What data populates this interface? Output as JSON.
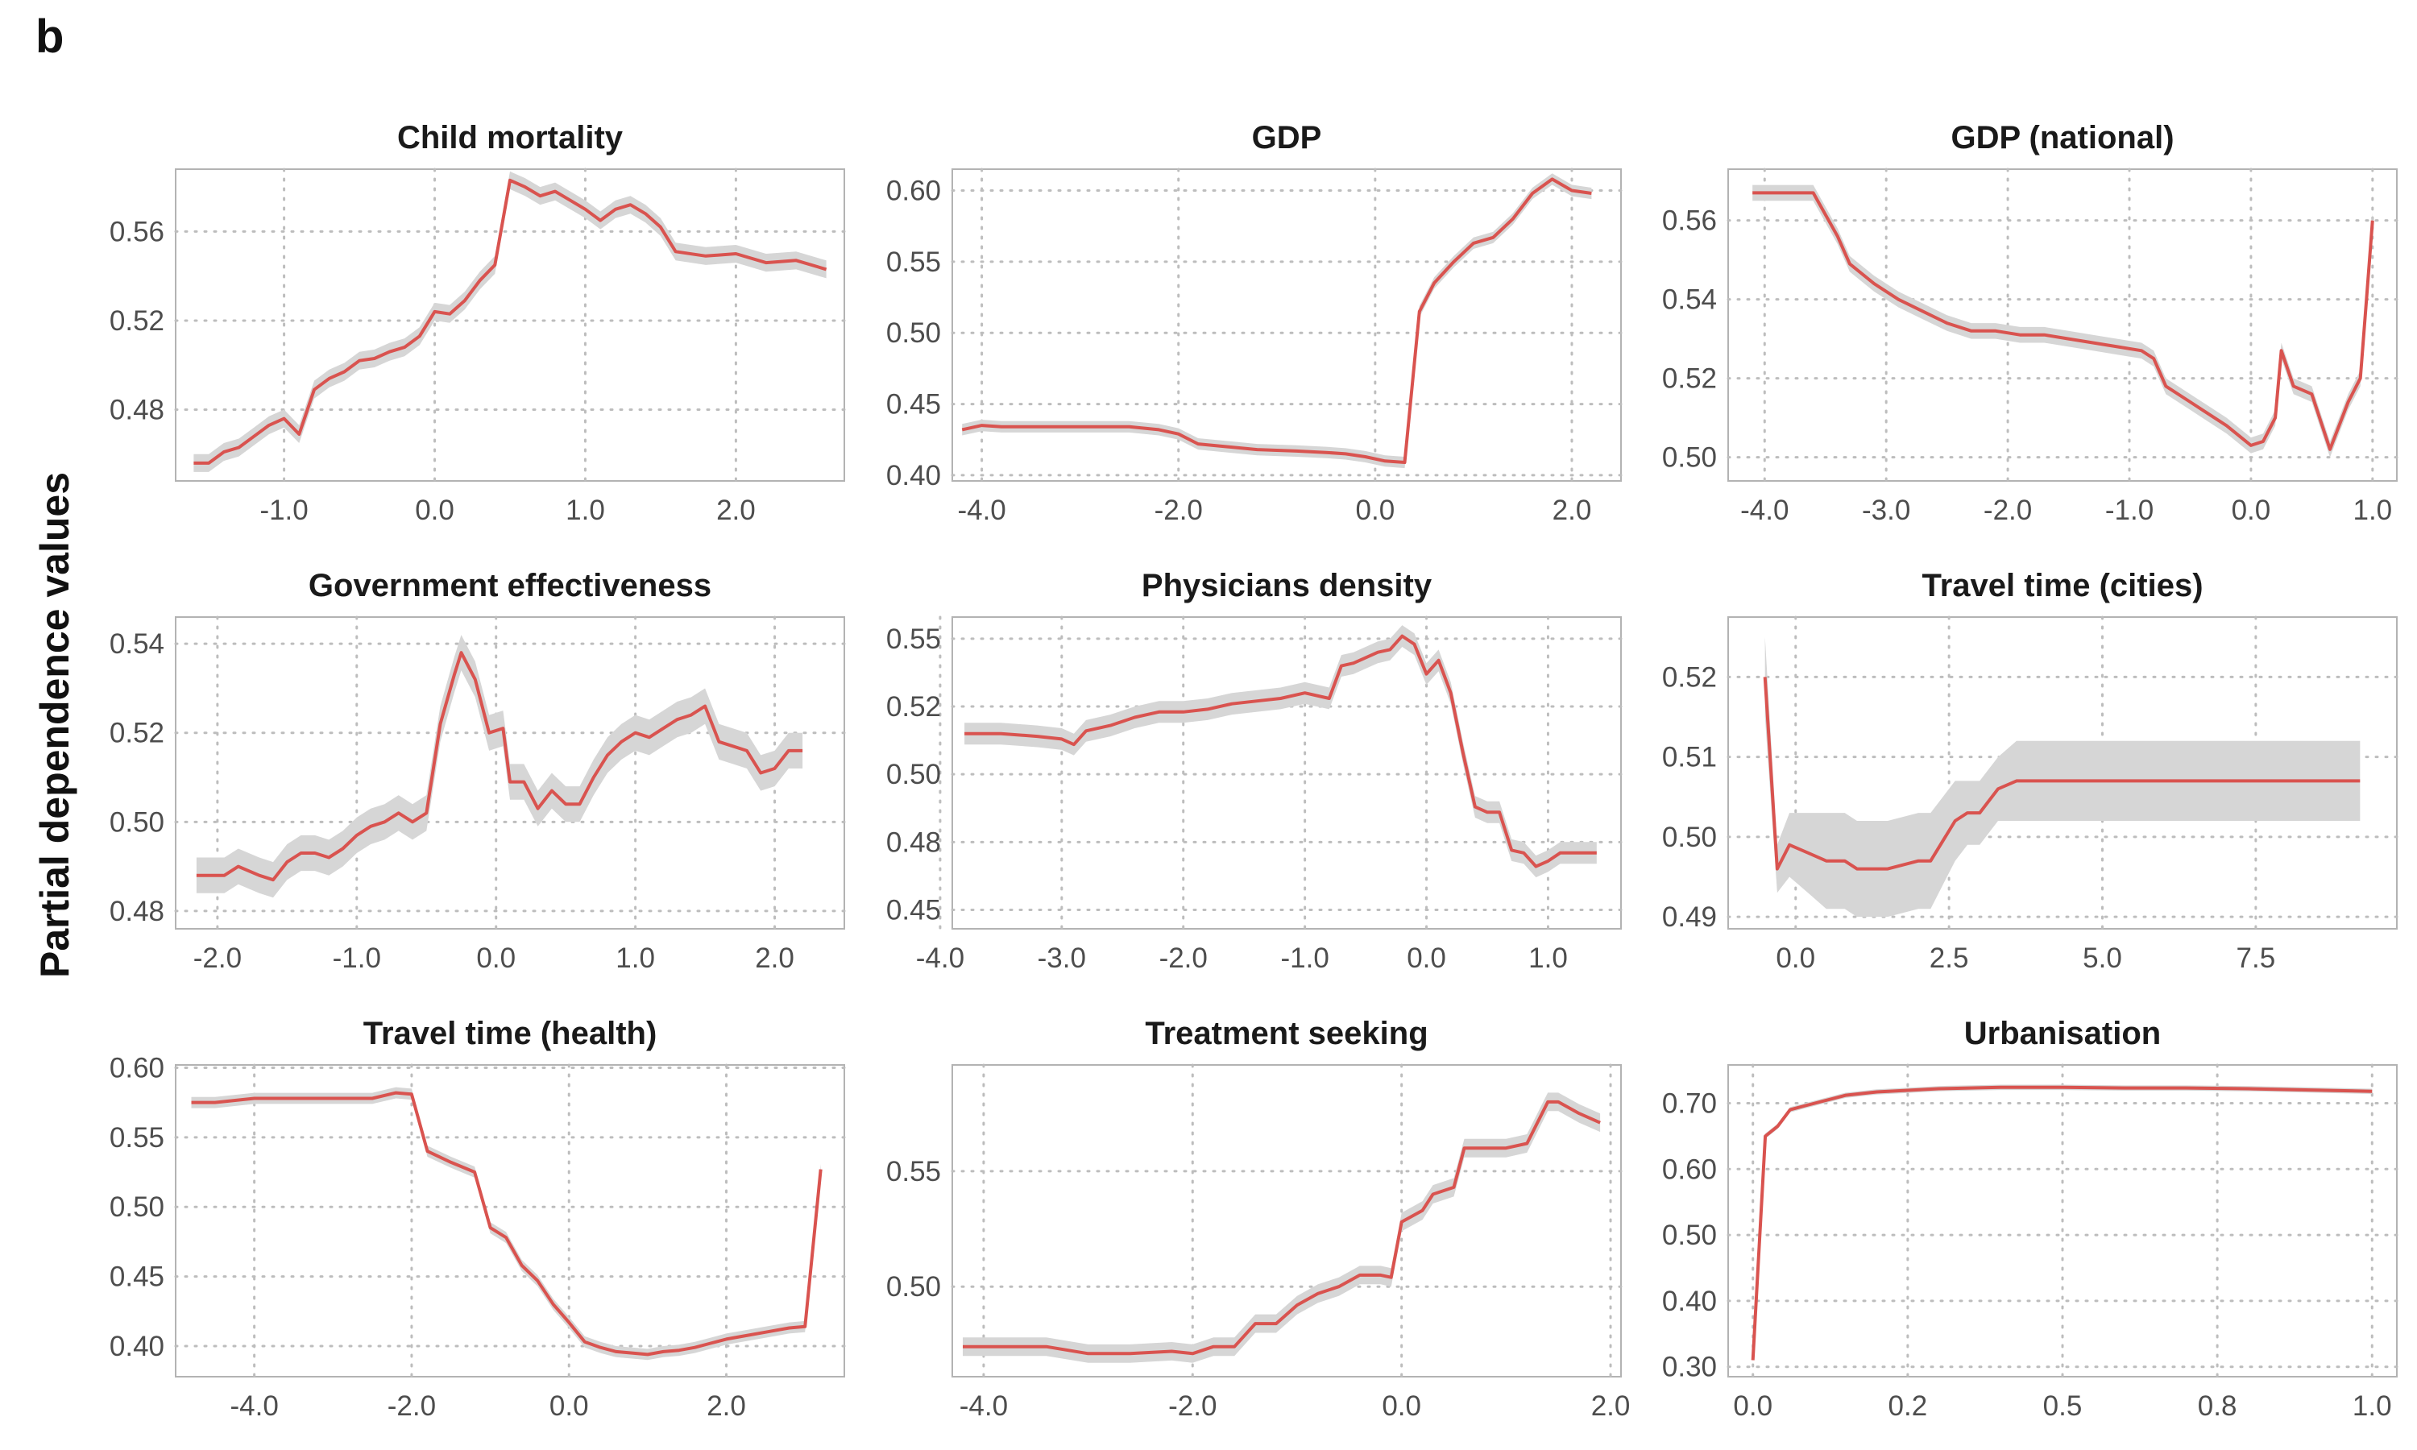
{
  "figure": {
    "panel_label": "b",
    "y_title": "Partial dependence values",
    "colors": {
      "line": "#d9534f",
      "band": "#d6d6d6",
      "grid": "#bdbdbd",
      "frame": "#b3b3b3"
    }
  },
  "chart_data": [
    {
      "type": "line",
      "title": "Child mortality",
      "xlim": [
        -1.72,
        2.72
      ],
      "ylim": [
        0.448,
        0.588
      ],
      "xticks": [
        -1.0,
        0.0,
        1.0,
        2.0
      ],
      "xtick_labels": [
        "-1.0",
        "0.0",
        "1.0",
        "2.0"
      ],
      "yticks": [
        0.48,
        0.52,
        0.56
      ],
      "ytick_labels": [
        "0.48",
        "0.52",
        "0.56"
      ],
      "x": [
        -1.6,
        -1.5,
        -1.4,
        -1.3,
        -1.2,
        -1.1,
        -1.0,
        -0.9,
        -0.8,
        -0.7,
        -0.6,
        -0.5,
        -0.4,
        -0.3,
        -0.2,
        -0.1,
        0.0,
        0.1,
        0.2,
        0.3,
        0.4,
        0.5,
        0.6,
        0.7,
        0.8,
        0.9,
        1.0,
        1.1,
        1.2,
        1.3,
        1.4,
        1.5,
        1.6,
        1.8,
        2.0,
        2.2,
        2.4,
        2.6
      ],
      "y": [
        0.456,
        0.456,
        0.461,
        0.463,
        0.468,
        0.473,
        0.476,
        0.469,
        0.489,
        0.494,
        0.497,
        0.502,
        0.503,
        0.506,
        0.508,
        0.513,
        0.524,
        0.523,
        0.529,
        0.538,
        0.545,
        0.583,
        0.58,
        0.576,
        0.578,
        0.574,
        0.57,
        0.565,
        0.57,
        0.572,
        0.568,
        0.562,
        0.551,
        0.549,
        0.55,
        0.546,
        0.547,
        0.543
      ],
      "band": 0.004
    },
    {
      "type": "line",
      "title": "GDP",
      "xlim": [
        -4.3,
        2.5
      ],
      "ylim": [
        0.396,
        0.615
      ],
      "xticks": [
        -4.0,
        -2.0,
        0.0,
        2.0
      ],
      "xtick_labels": [
        "-4.0",
        "-2.0",
        "0.0",
        "2.0"
      ],
      "yticks": [
        0.4,
        0.45,
        0.5,
        0.55,
        0.6
      ],
      "ytick_labels": [
        "0.40",
        "0.45",
        "0.50",
        "0.55",
        "0.60"
      ],
      "x": [
        -4.2,
        -4.0,
        -3.8,
        -3.5,
        -3.0,
        -2.5,
        -2.2,
        -2.0,
        -1.8,
        -1.5,
        -1.2,
        -0.8,
        -0.5,
        -0.3,
        -0.1,
        0.1,
        0.3,
        0.45,
        0.6,
        0.8,
        1.0,
        1.2,
        1.4,
        1.6,
        1.8,
        2.0,
        2.2
      ],
      "y": [
        0.432,
        0.435,
        0.434,
        0.434,
        0.434,
        0.434,
        0.432,
        0.429,
        0.422,
        0.42,
        0.418,
        0.417,
        0.416,
        0.415,
        0.413,
        0.41,
        0.409,
        0.515,
        0.535,
        0.55,
        0.563,
        0.567,
        0.58,
        0.598,
        0.608,
        0.6,
        0.598
      ],
      "band": 0.004
    },
    {
      "type": "line",
      "title": "GDP (national)",
      "xlim": [
        -4.3,
        1.2
      ],
      "ylim": [
        0.494,
        0.573
      ],
      "xticks": [
        -4.0,
        -3.0,
        -2.0,
        -1.0,
        0.0,
        1.0
      ],
      "xtick_labels": [
        "-4.0",
        "-3.0",
        "-2.0",
        "-1.0",
        "0.0",
        "1.0"
      ],
      "yticks": [
        0.5,
        0.52,
        0.54,
        0.56
      ],
      "ytick_labels": [
        "0.50",
        "0.52",
        "0.54",
        "0.56"
      ],
      "x": [
        -4.1,
        -3.9,
        -3.7,
        -3.6,
        -3.4,
        -3.3,
        -3.1,
        -2.9,
        -2.7,
        -2.5,
        -2.3,
        -2.1,
        -1.9,
        -1.7,
        -1.5,
        -1.3,
        -1.1,
        -0.9,
        -0.8,
        -0.7,
        -0.5,
        -0.4,
        -0.2,
        0.0,
        0.1,
        0.2,
        0.25,
        0.35,
        0.5,
        0.65,
        0.8,
        0.9,
        0.95,
        1.0
      ],
      "y": [
        0.567,
        0.567,
        0.567,
        0.567,
        0.556,
        0.549,
        0.544,
        0.54,
        0.537,
        0.534,
        0.532,
        0.532,
        0.531,
        0.531,
        0.53,
        0.529,
        0.528,
        0.527,
        0.525,
        0.518,
        0.514,
        0.512,
        0.508,
        0.503,
        0.504,
        0.51,
        0.527,
        0.518,
        0.516,
        0.502,
        0.514,
        0.52,
        0.54,
        0.56
      ],
      "band": 0.002
    },
    {
      "type": "line",
      "title": "Government effectiveness",
      "xlim": [
        -2.3,
        2.5
      ],
      "ylim": [
        0.476,
        0.546
      ],
      "xticks": [
        -2.0,
        -1.0,
        0.0,
        1.0,
        2.0
      ],
      "xtick_labels": [
        "-2.0",
        "-1.0",
        "0.0",
        "1.0",
        "2.0"
      ],
      "yticks": [
        0.48,
        0.5,
        0.52,
        0.54
      ],
      "ytick_labels": [
        "0.48",
        "0.50",
        "0.52",
        "0.54"
      ],
      "x": [
        -2.15,
        -1.95,
        -1.85,
        -1.7,
        -1.6,
        -1.5,
        -1.4,
        -1.3,
        -1.2,
        -1.1,
        -1.0,
        -0.9,
        -0.8,
        -0.7,
        -0.6,
        -0.5,
        -0.4,
        -0.3,
        -0.25,
        -0.15,
        -0.05,
        0.05,
        0.1,
        0.2,
        0.3,
        0.4,
        0.5,
        0.6,
        0.7,
        0.8,
        0.9,
        1.0,
        1.1,
        1.2,
        1.3,
        1.4,
        1.5,
        1.6,
        1.7,
        1.8,
        1.9,
        2.0,
        2.1,
        2.2
      ],
      "y": [
        0.488,
        0.488,
        0.49,
        0.488,
        0.487,
        0.491,
        0.493,
        0.493,
        0.492,
        0.494,
        0.497,
        0.499,
        0.5,
        0.502,
        0.5,
        0.502,
        0.522,
        0.533,
        0.538,
        0.532,
        0.52,
        0.521,
        0.509,
        0.509,
        0.503,
        0.507,
        0.504,
        0.504,
        0.51,
        0.515,
        0.518,
        0.52,
        0.519,
        0.521,
        0.523,
        0.524,
        0.526,
        0.518,
        0.517,
        0.516,
        0.511,
        0.512,
        0.516,
        0.516
      ],
      "band": 0.004
    },
    {
      "type": "line",
      "title": "Physicians density",
      "xlim": [
        -3.9,
        1.6
      ],
      "ylim": [
        0.443,
        0.558
      ],
      "xticks": [
        -4.0,
        -3.0,
        -2.0,
        -1.0,
        0.0,
        1.0
      ],
      "xtick_labels": [
        "-4.0",
        "-3.0",
        "-2.0",
        "-1.0",
        "0.0",
        "1.0"
      ],
      "yticks": [
        0.45,
        0.48,
        0.5,
        0.52,
        0.55
      ],
      "ytick_labels": [
        "0.45",
        "0.48",
        "0.50",
        "0.52",
        "0.55"
      ],
      "yticks_values": [
        0.45,
        0.475,
        0.5,
        0.525,
        0.55
      ],
      "x": [
        -3.8,
        -3.5,
        -3.2,
        -3.0,
        -2.9,
        -2.8,
        -2.6,
        -2.4,
        -2.2,
        -2.0,
        -1.8,
        -1.6,
        -1.4,
        -1.2,
        -1.0,
        -0.8,
        -0.7,
        -0.6,
        -0.4,
        -0.3,
        -0.2,
        -0.1,
        0.0,
        0.1,
        0.2,
        0.3,
        0.4,
        0.5,
        0.6,
        0.7,
        0.8,
        0.9,
        1.0,
        1.1,
        1.2,
        1.3,
        1.4
      ],
      "y": [
        0.515,
        0.515,
        0.514,
        0.513,
        0.511,
        0.516,
        0.518,
        0.521,
        0.523,
        0.523,
        0.524,
        0.526,
        0.527,
        0.528,
        0.53,
        0.528,
        0.54,
        0.541,
        0.545,
        0.546,
        0.551,
        0.548,
        0.537,
        0.542,
        0.53,
        0.508,
        0.488,
        0.486,
        0.486,
        0.472,
        0.471,
        0.466,
        0.468,
        0.471,
        0.471,
        0.471,
        0.471
      ],
      "band": 0.004
    },
    {
      "type": "line",
      "title": "Travel time (cities)",
      "xlim": [
        -1.1,
        9.8
      ],
      "ylim": [
        0.4885,
        0.5275
      ],
      "xticks": [
        0.0,
        2.5,
        5.0,
        7.5
      ],
      "xtick_labels": [
        "0.0",
        "2.5",
        "5.0",
        "7.5"
      ],
      "yticks": [
        0.49,
        0.5,
        0.51,
        0.52
      ],
      "ytick_labels": [
        "0.49",
        "0.50",
        "0.51",
        "0.52"
      ],
      "x": [
        -0.5,
        -0.3,
        -0.1,
        0.2,
        0.5,
        0.8,
        1.0,
        1.5,
        2.0,
        2.2,
        2.6,
        2.8,
        3.0,
        3.3,
        3.6,
        3.8,
        5.0,
        7.5,
        9.2
      ],
      "y": [
        0.52,
        0.496,
        0.499,
        0.498,
        0.497,
        0.497,
        0.496,
        0.496,
        0.497,
        0.497,
        0.502,
        0.503,
        0.503,
        0.506,
        0.507,
        0.507,
        0.507,
        0.507,
        0.507
      ],
      "band_width": [
        0.005,
        0.003,
        0.004,
        0.005,
        0.006,
        0.006,
        0.006,
        0.006,
        0.006,
        0.006,
        0.005,
        0.004,
        0.004,
        0.004,
        0.005,
        0.005,
        0.005,
        0.005,
        0.005
      ]
    },
    {
      "type": "line",
      "title": "Travel time (health)",
      "xlim": [
        -5.0,
        3.5
      ],
      "ylim": [
        0.378,
        0.602
      ],
      "xticks": [
        -4.0,
        -2.0,
        0.0,
        2.0
      ],
      "xtick_labels": [
        "-4.0",
        "-2.0",
        "0.0",
        "2.0"
      ],
      "yticks": [
        0.4,
        0.45,
        0.5,
        0.55,
        0.6
      ],
      "ytick_labels": [
        "0.40",
        "0.45",
        "0.50",
        "0.55",
        "0.60"
      ],
      "x": [
        -4.8,
        -4.5,
        -4.0,
        -3.5,
        -3.0,
        -2.5,
        -2.2,
        -2.0,
        -1.8,
        -1.5,
        -1.2,
        -1.0,
        -0.8,
        -0.6,
        -0.4,
        -0.2,
        0.0,
        0.2,
        0.4,
        0.6,
        0.8,
        1.0,
        1.2,
        1.4,
        1.6,
        1.8,
        2.0,
        2.2,
        2.5,
        2.8,
        3.0,
        3.2
      ],
      "y": [
        0.575,
        0.575,
        0.578,
        0.578,
        0.578,
        0.578,
        0.582,
        0.581,
        0.54,
        0.532,
        0.525,
        0.485,
        0.478,
        0.458,
        0.447,
        0.43,
        0.417,
        0.403,
        0.399,
        0.396,
        0.395,
        0.394,
        0.396,
        0.397,
        0.399,
        0.402,
        0.405,
        0.407,
        0.41,
        0.413,
        0.414,
        0.527
      ],
      "band": 0.004
    },
    {
      "type": "line",
      "title": "Treatment seeking",
      "xlim": [
        -4.3,
        2.1
      ],
      "ylim": [
        0.461,
        0.596
      ],
      "xticks": [
        -4.0,
        -2.0,
        0.0,
        2.0
      ],
      "xtick_labels": [
        "-4.0",
        "-2.0",
        "0.0",
        "2.0"
      ],
      "yticks": [
        0.5,
        0.55
      ],
      "ytick_labels": [
        "0.50",
        "0.55"
      ],
      "x": [
        -4.2,
        -3.8,
        -3.4,
        -3.0,
        -2.6,
        -2.2,
        -2.0,
        -1.8,
        -1.6,
        -1.4,
        -1.2,
        -1.0,
        -0.8,
        -0.6,
        -0.4,
        -0.2,
        -0.1,
        0.0,
        0.2,
        0.3,
        0.5,
        0.6,
        0.8,
        1.0,
        1.2,
        1.4,
        1.5,
        1.7,
        1.9
      ],
      "y": [
        0.474,
        0.474,
        0.474,
        0.471,
        0.471,
        0.472,
        0.471,
        0.474,
        0.474,
        0.484,
        0.484,
        0.492,
        0.497,
        0.5,
        0.505,
        0.505,
        0.504,
        0.528,
        0.533,
        0.54,
        0.543,
        0.56,
        0.56,
        0.56,
        0.562,
        0.58,
        0.58,
        0.575,
        0.571
      ],
      "band": 0.004
    },
    {
      "type": "line",
      "title": "Urbanisation",
      "xlim": [
        -0.04,
        1.04
      ],
      "ylim": [
        0.285,
        0.758
      ],
      "xticks": [
        0.0,
        0.25,
        0.5,
        0.75,
        1.0
      ],
      "xtick_labels": [
        "0.0",
        "0.2",
        "0.5",
        "0.8",
        "1.0"
      ],
      "yticks": [
        0.3,
        0.4,
        0.5,
        0.6,
        0.7
      ],
      "ytick_labels": [
        "0.30",
        "0.40",
        "0.50",
        "0.60",
        "0.70"
      ],
      "x": [
        0.0,
        0.02,
        0.04,
        0.06,
        0.08,
        0.1,
        0.15,
        0.2,
        0.3,
        0.4,
        0.5,
        0.6,
        0.7,
        0.8,
        0.9,
        1.0
      ],
      "y": [
        0.31,
        0.65,
        0.665,
        0.69,
        0.695,
        0.7,
        0.712,
        0.717,
        0.722,
        0.724,
        0.724,
        0.723,
        0.723,
        0.722,
        0.72,
        0.718
      ],
      "band": 0.004
    }
  ]
}
